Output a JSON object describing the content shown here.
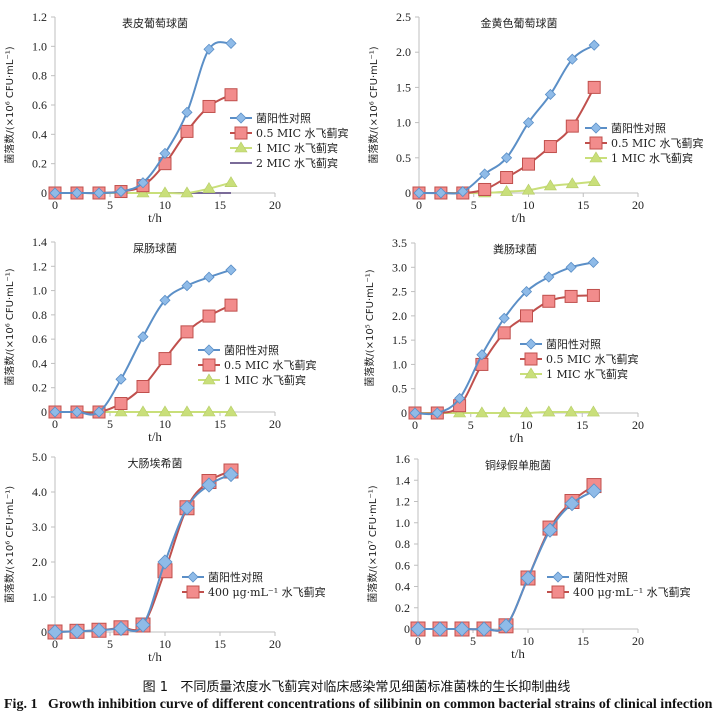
{
  "caption": {
    "cn_label": "图 1",
    "cn_text": "不同质量浓度水飞蓟宾对临床感染常见细菌标准菌株的生长抑制曲线",
    "en_label": "Fig. 1",
    "en_text": "Growth inhibition curve of different concentrations of silibinin on common bacterial strains of clinical infection"
  },
  "colors": {
    "control": "#5b8fc7",
    "control_marker": "#8fbbe8",
    "mic05": "#c0504d",
    "mic05_marker": "#f28c8c",
    "mic1": "#c9df7a",
    "mic2": "#7a6b98",
    "axis": "#bfbfbf"
  },
  "chart_data": [
    {
      "type": "line",
      "title": "表皮葡萄球菌",
      "xlabel": "t/h",
      "ylabel": "菌落数/(×10⁶ CFU·mL⁻¹)",
      "xlim": [
        0,
        20
      ],
      "ylim": [
        0,
        1.2
      ],
      "xticks": [
        "0",
        "5",
        "10",
        "15",
        "20"
      ],
      "yticks": [
        "0",
        "0.2",
        "0.4",
        "0.6",
        "0.8",
        "1.0",
        "1.2"
      ],
      "grid": false,
      "legend": "right",
      "x": [
        0,
        2,
        4,
        6,
        8,
        10,
        12,
        14,
        16
      ],
      "series": [
        {
          "name": "菌阳性对照",
          "key": "control",
          "values": [
            0,
            0,
            0,
            0.01,
            0.07,
            0.27,
            0.55,
            0.98,
            1.02
          ]
        },
        {
          "name": "0.5 MIC 水飞蓟宾",
          "key": "mic05",
          "values": [
            0,
            0,
            0,
            0.01,
            0.05,
            0.2,
            0.42,
            0.59,
            0.67
          ]
        },
        {
          "name": "1 MIC 水飞蓟宾",
          "key": "mic1",
          "values": [
            0,
            0,
            0,
            0,
            0,
            0,
            0,
            0.03,
            0.07
          ]
        },
        {
          "name": "2 MIC 水飞蓟宾",
          "key": "mic2",
          "values": [
            0,
            0,
            0,
            0,
            0,
            0,
            0,
            0,
            0
          ]
        }
      ]
    },
    {
      "type": "line",
      "title": "金黄色葡萄球菌",
      "xlabel": "t/h",
      "ylabel": "菌落数/(×10⁶ CFU·mL⁻¹)",
      "xlim": [
        0,
        20
      ],
      "ylim": [
        0,
        2.5
      ],
      "xticks": [
        "0",
        "5",
        "10",
        "15",
        "20"
      ],
      "yticks": [
        "0",
        "0.5",
        "1.0",
        "1.5",
        "2.0",
        "2.5"
      ],
      "grid": false,
      "legend": "right",
      "x": [
        0,
        2,
        4,
        6,
        8,
        10,
        12,
        14,
        16
      ],
      "series": [
        {
          "name": "菌阳性对照",
          "key": "control",
          "values": [
            0,
            0,
            0.02,
            0.27,
            0.5,
            1.0,
            1.4,
            1.9,
            2.1
          ]
        },
        {
          "name": "0.5 MIC 水飞蓟宾",
          "key": "mic05",
          "values": [
            0,
            0,
            0,
            0.05,
            0.22,
            0.41,
            0.66,
            0.95,
            1.5
          ]
        },
        {
          "name": "1 MIC 水飞蓟宾",
          "key": "mic1",
          "values": [
            0,
            0,
            0,
            0,
            0.02,
            0.04,
            0.1,
            0.13,
            0.16
          ]
        }
      ]
    },
    {
      "type": "line",
      "title": "屎肠球菌",
      "xlabel": "t/h",
      "ylabel": "菌落数/(×10⁶ CFU·mL⁻¹)",
      "xlim": [
        0,
        20
      ],
      "ylim": [
        0,
        1.4
      ],
      "xticks": [
        "0",
        "5",
        "10",
        "15",
        "20"
      ],
      "yticks": [
        "0",
        "0.2",
        "0.4",
        "0.6",
        "0.8",
        "1.0",
        "1.2",
        "1.4"
      ],
      "grid": false,
      "legend": "right",
      "x": [
        0,
        2,
        4,
        6,
        8,
        10,
        12,
        14,
        16
      ],
      "series": [
        {
          "name": "菌阳性对照",
          "key": "control",
          "values": [
            0,
            0,
            0,
            0.27,
            0.62,
            0.92,
            1.04,
            1.11,
            1.17
          ]
        },
        {
          "name": "0.5 MIC 水飞蓟宾",
          "key": "mic05",
          "values": [
            0,
            0,
            0,
            0.07,
            0.21,
            0.44,
            0.66,
            0.79,
            0.88
          ]
        },
        {
          "name": "1 MIC 水飞蓟宾",
          "key": "mic1",
          "values": [
            0,
            0,
            0,
            0,
            0,
            0,
            0,
            0,
            0
          ]
        }
      ]
    },
    {
      "type": "line",
      "title": "粪肠球菌",
      "xlabel": "t/h",
      "ylabel": "菌落数/(×10⁵ CFU·mL⁻¹)",
      "xlim": [
        0,
        20
      ],
      "ylim": [
        0,
        3.5
      ],
      "xticks": [
        "0",
        "5",
        "10",
        "15",
        "20"
      ],
      "yticks": [
        "0",
        "0.5",
        "1.0",
        "1.5",
        "2.0",
        "2.5",
        "3.0",
        "3.5"
      ],
      "grid": false,
      "legend": "right",
      "x": [
        0,
        2,
        4,
        6,
        8,
        10,
        12,
        14,
        16
      ],
      "series": [
        {
          "name": "菌阳性对照",
          "key": "control",
          "values": [
            0,
            0,
            0.3,
            1.2,
            1.95,
            2.5,
            2.8,
            3.0,
            3.1
          ]
        },
        {
          "name": "0.5 MIC 水飞蓟宾",
          "key": "mic05",
          "values": [
            0,
            0,
            0.15,
            1.0,
            1.65,
            2.0,
            2.3,
            2.4,
            2.42
          ]
        },
        {
          "name": "1 MIC 水飞蓟宾",
          "key": "mic1",
          "values": [
            0,
            0,
            0,
            0,
            0,
            0,
            0.02,
            0.02,
            0.02
          ]
        }
      ]
    },
    {
      "type": "line",
      "title": "大肠埃希菌",
      "xlabel": "t/h",
      "ylabel": "菌落数/(×10⁶ CFU·mL⁻¹)",
      "xlim": [
        0,
        20
      ],
      "ylim": [
        0,
        5.0
      ],
      "xticks": [
        "0",
        "5",
        "10",
        "15",
        "20"
      ],
      "yticks": [
        "0",
        "1.0",
        "2.0",
        "3.0",
        "4.0",
        "5.0"
      ],
      "grid": false,
      "legend": "right",
      "x": [
        0,
        2,
        4,
        6,
        8,
        10,
        12,
        14,
        16
      ],
      "series": [
        {
          "name": "菌阳性对照",
          "key": "control",
          "values": [
            0,
            0.02,
            0.05,
            0.1,
            0.2,
            2.0,
            3.55,
            4.2,
            4.5
          ]
        },
        {
          "name": "400 μg·mL⁻¹ 水飞蓟宾",
          "key": "mic05",
          "values": [
            0,
            0.02,
            0.05,
            0.12,
            0.2,
            1.75,
            3.55,
            4.3,
            4.6
          ]
        }
      ]
    },
    {
      "type": "line",
      "title": "铜绿假单胞菌",
      "xlabel": "t/h",
      "ylabel": "菌落数/(×10⁷ CFU·mL⁻¹)",
      "xlim": [
        0,
        20
      ],
      "ylim": [
        0,
        1.6
      ],
      "xticks": [
        "0",
        "5",
        "10",
        "15",
        "20"
      ],
      "yticks": [
        "0",
        "0.2",
        "0.4",
        "0.6",
        "0.8",
        "1.0",
        "1.2",
        "1.4",
        "1.6"
      ],
      "grid": false,
      "legend": "right",
      "x": [
        0,
        2,
        4,
        6,
        8,
        10,
        12,
        14,
        16
      ],
      "series": [
        {
          "name": "菌阳性对照",
          "key": "control",
          "values": [
            0,
            0,
            0,
            0,
            0.03,
            0.48,
            0.93,
            1.18,
            1.3
          ]
        },
        {
          "name": "400 μg·mL⁻¹ 水飞蓟宾",
          "key": "mic05",
          "values": [
            0,
            0,
            0,
            0,
            0.03,
            0.48,
            0.95,
            1.2,
            1.35
          ]
        }
      ]
    }
  ]
}
